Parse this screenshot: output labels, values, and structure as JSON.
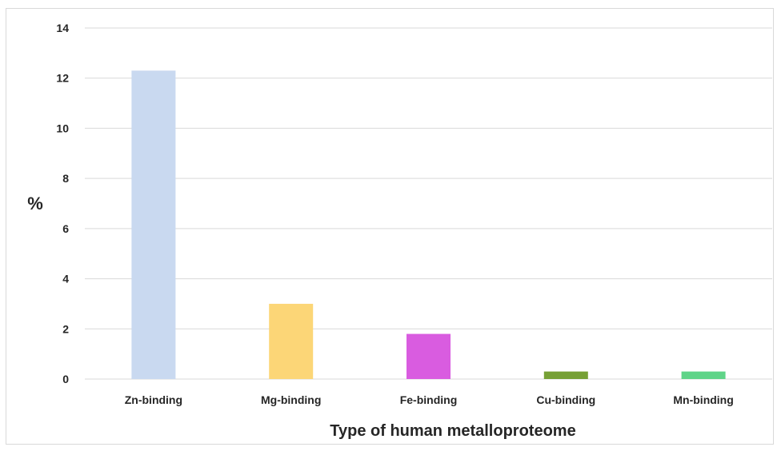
{
  "chart_data": {
    "type": "bar",
    "categories": [
      "Zn-binding",
      "Mg-binding",
      "Fe-binding",
      "Cu-binding",
      "Mn-binding"
    ],
    "values": [
      12.3,
      3.0,
      1.8,
      0.3,
      0.3
    ],
    "colors": [
      "#c9d9f0",
      "#fcd677",
      "#d95ce0",
      "#76a035",
      "#5fd488"
    ],
    "xlabel": "Type of human metalloproteome",
    "ylabel": "%",
    "ylim": [
      0,
      14
    ],
    "yticks": [
      "0",
      "2",
      "4",
      "6",
      "8",
      "10",
      "12",
      "14"
    ],
    "grid": true,
    "legend": "none"
  }
}
